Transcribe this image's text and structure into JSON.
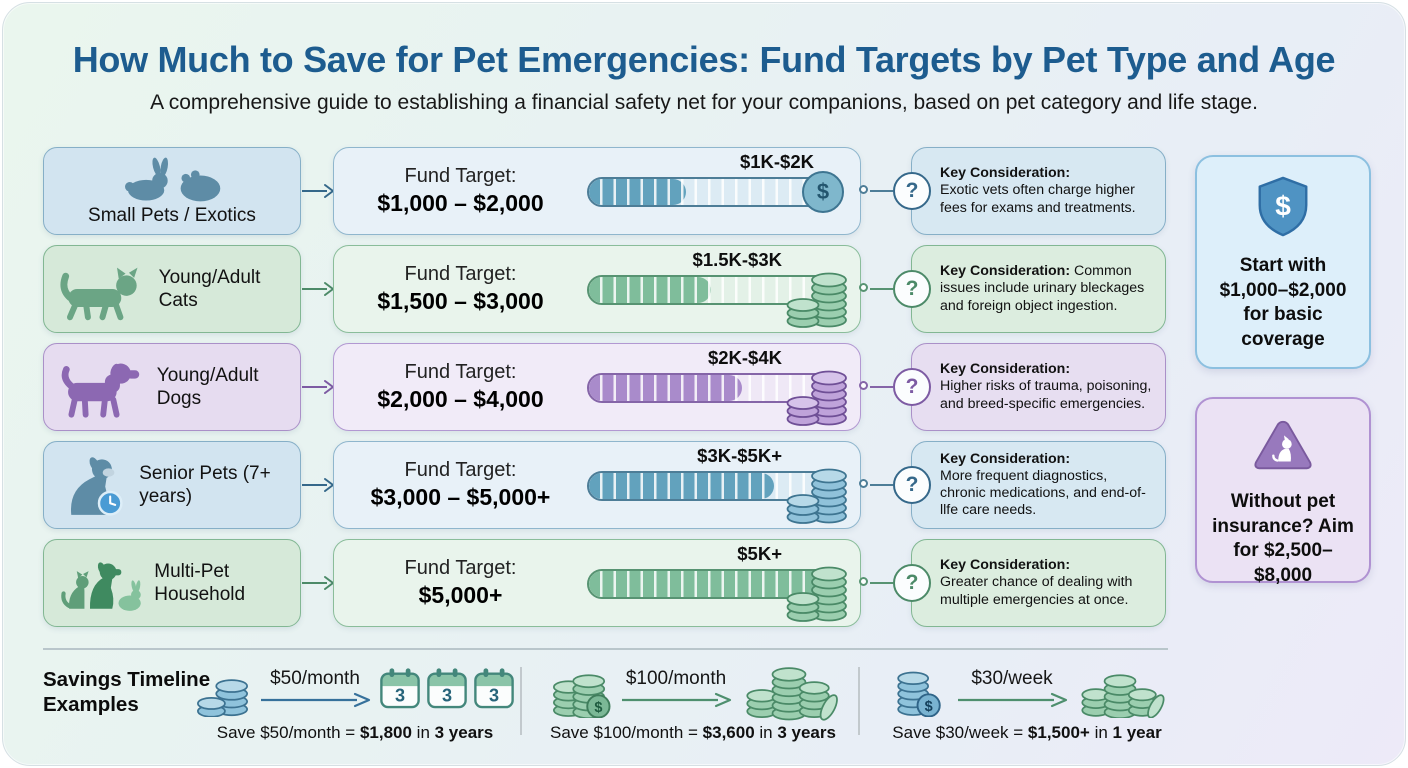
{
  "page": {
    "title": "How Much to Save for Pet Emergencies: Fund Targets by Pet Type and Age",
    "subtitle": "A comprehensive guide to establishing a financial safety net for your companions, based on pet category and life stage."
  },
  "rows": [
    {
      "pet_label": "Small Pets / Exotics",
      "icon": "rabbit-hamster-icon",
      "fund_label": "Fund Target:",
      "fund_amount": "$1,000 – $2,000",
      "range_label": "$1K-$2K",
      "fill_pct": 40,
      "key_title": "Key Consideration:",
      "key_text": "Exotic vets often charge higher fees for exams and treatments."
    },
    {
      "pet_label": "Young/Adult Cats",
      "icon": "cat-icon",
      "fund_label": "Fund Target:",
      "fund_amount": "$1,500 – $3,000",
      "range_label": "$1.5K-$3K",
      "fill_pct": 50,
      "key_title": "Key Consideration:",
      "key_text": "Common issues include urinary bleckages and foreign object ingestion."
    },
    {
      "pet_label": "Young/Adult Dogs",
      "icon": "dog-icon",
      "fund_label": "Fund Target:",
      "fund_amount": "$2,000 – $4,000",
      "range_label": "$2K-$4K",
      "fill_pct": 63,
      "key_title": "Key Consideration:",
      "key_text": "Higher risks of trauma, poisoning, and breed-specific emergencies."
    },
    {
      "pet_label": "Senior Pets (7+ years)",
      "icon": "senior-dog-clock-icon",
      "fund_label": "Fund Target:",
      "fund_amount": "$3,000 – $5,000+",
      "range_label": "$3K-$5K+",
      "fill_pct": 76,
      "key_title": "Key Consideration:",
      "key_text": "More frequent diagnostics, chronic medications, and end-of-llfe care needs."
    },
    {
      "pet_label": "Multi-Pet Household",
      "icon": "multi-pet-icon",
      "fund_label": "Fund Target:",
      "fund_amount": "$5,000+",
      "range_label": "$5K+",
      "fill_pct": 97,
      "key_title": "Key Consideration:",
      "key_text": "Greater chance of dealing with multiple emergencies at once."
    }
  ],
  "callouts": [
    {
      "icon": "shield-dollar-icon",
      "text": "Start with $1,000–$2,000 for basic coverage"
    },
    {
      "icon": "warning-pet-icon",
      "text": "Without pet insurance? Aim for $2,500–$8,000"
    }
  ],
  "timeline": {
    "heading": "Savings Timeline Examples",
    "calendar_number": "3",
    "examples": [
      {
        "rate": "$50/month",
        "caption": {
          "pre": "Save $50/month = ",
          "amount": "$1,800",
          "mid": " in ",
          "duration": "3 years"
        }
      },
      {
        "rate": "$100/month",
        "caption": {
          "pre": "Save $100/month = ",
          "amount": "$3,600",
          "mid": " in ",
          "duration": "3 years"
        }
      },
      {
        "rate": "$30/week",
        "caption": {
          "pre": "Save $30/week = ",
          "amount": "$1,500+",
          "mid": " in ",
          "duration": "1 year"
        }
      }
    ]
  },
  "glyphs": {
    "dollar": "$",
    "question": "?"
  },
  "colors": {
    "title": "#1d5c8f",
    "blue_fill": "#62a2bd",
    "green_fill": "#7fbd9b",
    "purple_fill": "#a98bcb",
    "callout_blue_bg": "#ddeffa",
    "callout_purple_bg": "#ebe2f4",
    "clock_badge": "#4a9bd4"
  }
}
